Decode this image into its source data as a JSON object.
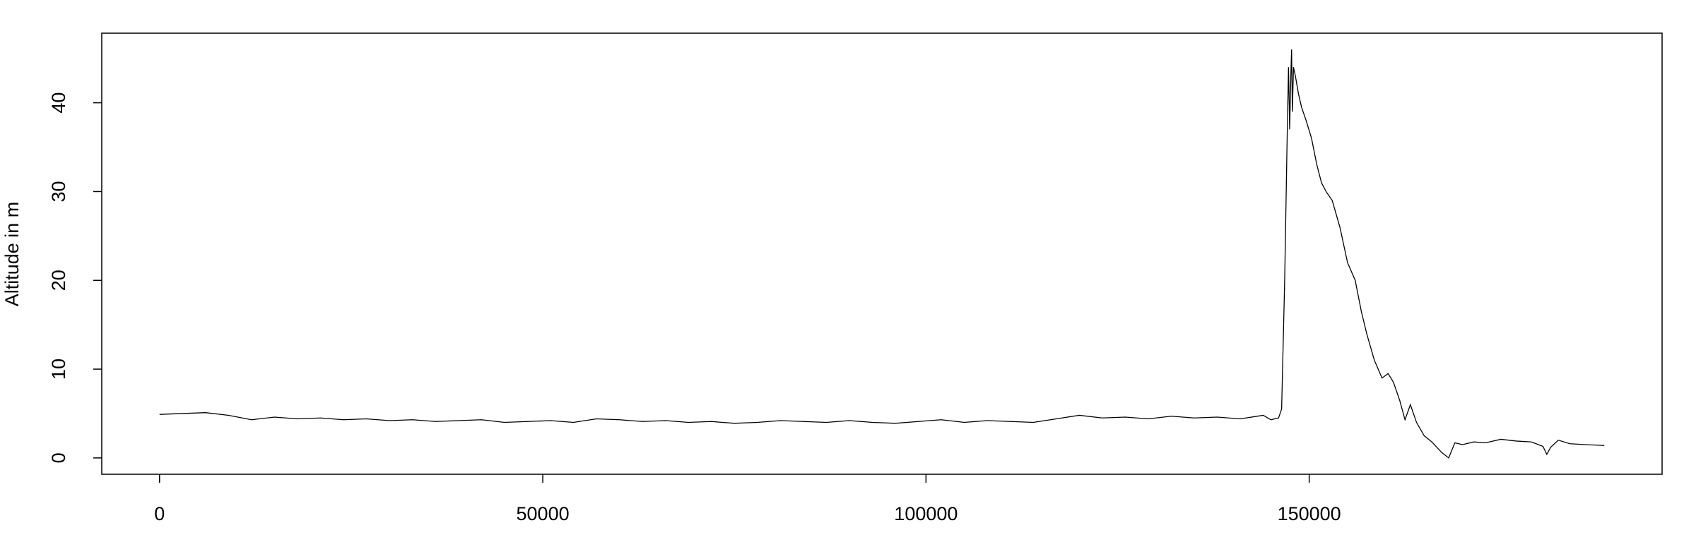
{
  "chart_data": {
    "type": "line",
    "ylabel": "Altitude in m",
    "color": "#000000",
    "x": [
      0,
      3000,
      6000,
      9000,
      12000,
      15000,
      18000,
      21000,
      24000,
      27000,
      30000,
      33000,
      36000,
      39000,
      42000,
      45000,
      48000,
      51000,
      54000,
      57000,
      60000,
      63000,
      66000,
      69000,
      72000,
      75000,
      78000,
      81000,
      84000,
      87000,
      90000,
      93000,
      96000,
      99000,
      102000,
      105000,
      108000,
      111000,
      114000,
      117000,
      120000,
      123000,
      126000,
      129000,
      132000,
      135000,
      138000,
      141000,
      144000,
      145000,
      146000,
      146400,
      146800,
      147100,
      147300,
      147450,
      147600,
      147700,
      147800,
      147950,
      148200,
      148600,
      149000,
      149600,
      150300,
      151000,
      151600,
      152200,
      153000,
      154000,
      155000,
      156000,
      156800,
      157500,
      158500,
      159500,
      160300,
      161000,
      161800,
      162500,
      163200,
      164000,
      165000,
      166000,
      167300,
      168200,
      169000,
      170000,
      171500,
      173000,
      175000,
      177000,
      179000,
      180500,
      181000,
      181500,
      182500,
      184000,
      186000,
      188500
    ],
    "values": [
      4.9,
      5.0,
      5.1,
      4.8,
      4.3,
      4.6,
      4.4,
      4.5,
      4.3,
      4.4,
      4.2,
      4.3,
      4.1,
      4.2,
      4.3,
      4.0,
      4.1,
      4.2,
      4.0,
      4.4,
      4.3,
      4.1,
      4.2,
      4.0,
      4.1,
      3.9,
      4.0,
      4.2,
      4.1,
      4.0,
      4.2,
      4.0,
      3.9,
      4.1,
      4.3,
      4.0,
      4.2,
      4.1,
      4.0,
      4.4,
      4.8,
      4.5,
      4.6,
      4.4,
      4.7,
      4.5,
      4.6,
      4.4,
      4.8,
      4.3,
      4.5,
      5.5,
      20,
      35,
      44,
      37,
      43,
      46,
      39,
      44,
      43,
      41,
      39.5,
      38,
      36,
      33,
      31,
      30,
      29,
      26,
      22,
      20,
      16.5,
      14,
      11,
      9,
      9.5,
      8.5,
      6.5,
      4.3,
      6,
      4,
      2.5,
      1.8,
      0.6,
      0,
      1.7,
      1.5,
      1.8,
      1.7,
      2.1,
      1.9,
      1.8,
      1.3,
      0.4,
      1.2,
      2.0,
      1.6,
      1.5,
      1.4
    ],
    "xlim": [
      -7540,
      196040
    ],
    "ylim": [
      -1.84,
      47.84
    ],
    "xticks": [
      0,
      50000,
      100000,
      150000
    ],
    "yticks": [
      0,
      10,
      20,
      30,
      40
    ]
  }
}
